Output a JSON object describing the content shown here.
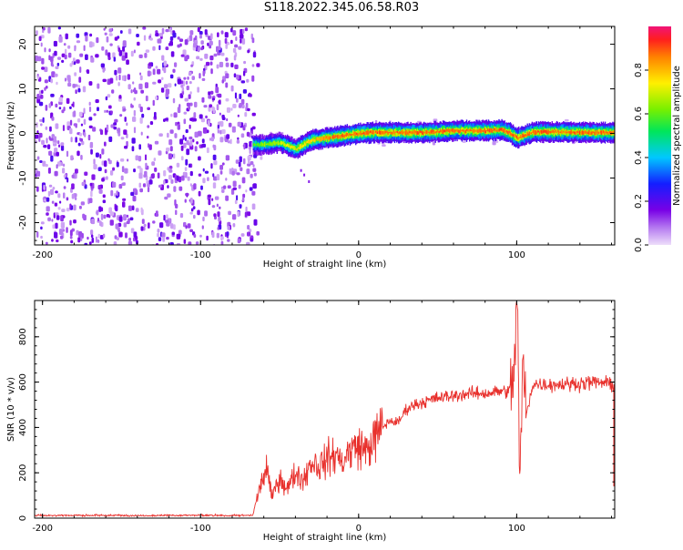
{
  "title": "S118.2022.345.06.58.R03",
  "chart_data": [
    {
      "type": "heatmap",
      "title": "",
      "xlabel": "Height of straight line (km)",
      "ylabel": "Frequency (Hz)",
      "xlim": [
        -205,
        162
      ],
      "ylim": [
        -25,
        24
      ],
      "xticks": [
        -200,
        -100,
        0,
        100
      ],
      "yticks": [
        -20,
        -10,
        0,
        10,
        20
      ],
      "noise_region_x": [
        -205,
        -67
      ],
      "ridge": {
        "x": [
          -67,
          -60,
          -50,
          -40,
          -35,
          -30,
          -20,
          -10,
          0,
          10,
          20,
          40,
          60,
          80,
          90,
          95,
          100,
          110,
          130,
          150,
          162
        ],
        "y": [
          -2.5,
          -2.5,
          -2.0,
          -3.5,
          -2.5,
          -1.5,
          -1.0,
          -0.5,
          0.0,
          0.2,
          0.2,
          0.2,
          0.6,
          0.6,
          0.8,
          0.2,
          -1.0,
          0.3,
          0.3,
          0.2,
          0.2
        ]
      },
      "colorbar": {
        "label": "Normalized spectral amplitude",
        "range": [
          0.0,
          1.0
        ],
        "ticks": [
          0.0,
          0.2,
          0.4,
          0.6,
          0.8
        ]
      }
    },
    {
      "type": "line",
      "title": "",
      "xlabel": "Height of straight line (km)",
      "ylabel": "SNR (10 * v/v)",
      "xlim": [
        -205,
        162
      ],
      "ylim": [
        0,
        960
      ],
      "xticks": [
        -200,
        -100,
        0,
        100
      ],
      "yticks": [
        0,
        200,
        400,
        600,
        800
      ],
      "grid": false,
      "series": [
        {
          "color": "#e8302c",
          "x": [
            -205,
            -150,
            -100,
            -67,
            -62,
            -58,
            -55,
            -50,
            -45,
            -40,
            -35,
            -30,
            -25,
            -20,
            -15,
            -10,
            -5,
            0,
            5,
            10,
            15,
            20,
            25,
            30,
            35,
            40,
            50,
            60,
            70,
            80,
            90,
            95,
            98,
            100,
            102,
            104,
            106,
            110,
            120,
            130,
            140,
            150,
            162
          ],
          "y": [
            12,
            14,
            13,
            12,
            150,
            220,
            90,
            180,
            130,
            200,
            170,
            250,
            230,
            260,
            280,
            250,
            300,
            320,
            300,
            350,
            400,
            430,
            420,
            480,
            500,
            510,
            530,
            540,
            550,
            550,
            560,
            560,
            600,
            960,
            200,
            700,
            450,
            590,
            590,
            590,
            595,
            600,
            590
          ]
        }
      ]
    }
  ]
}
